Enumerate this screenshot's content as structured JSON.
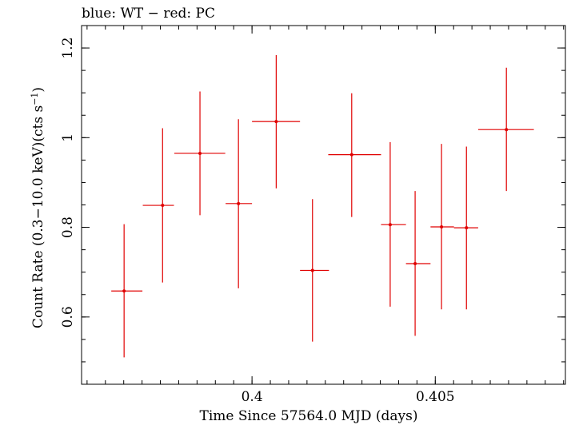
{
  "chart_data": {
    "type": "scatter",
    "title": "blue: WT − red: PC",
    "xlabel": "Time Since 57564.0 MJD (days)",
    "ylabel_main": "Count Rate (0.3−10.0 keV)(cts s",
    "ylabel_sup": "−1",
    "ylabel_close": ")",
    "xlim": [
      0.39535,
      0.40855
    ],
    "ylim": [
      0.45,
      1.25
    ],
    "x_ticks": [
      {
        "value": 0.4,
        "label": "0.4"
      },
      {
        "value": 0.405,
        "label": "0.405"
      }
    ],
    "x_minor_step": 0.0005,
    "y_ticks": [
      {
        "value": 0.6,
        "label": "0.6"
      },
      {
        "value": 0.8,
        "label": "0.8"
      },
      {
        "value": 1.0,
        "label": "1"
      },
      {
        "value": 1.2,
        "label": "1.2"
      }
    ],
    "y_minor_step": 0.05,
    "series": [
      {
        "color": "#e00000",
        "points": [
          {
            "x": 0.39651,
            "xerr": [
              0.39616,
              0.39701
            ],
            "y": 0.658,
            "yerr": [
              0.51,
              0.807
            ]
          },
          {
            "x": 0.39756,
            "xerr": [
              0.39702,
              0.39787
            ],
            "y": 0.849,
            "yerr": [
              0.677,
              1.021
            ]
          },
          {
            "x": 0.39858,
            "xerr": [
              0.39788,
              0.39927
            ],
            "y": 0.965,
            "yerr": [
              0.827,
              1.103
            ]
          },
          {
            "x": 0.39963,
            "xerr": [
              0.39928,
              0.4
            ],
            "y": 0.853,
            "yerr": [
              0.664,
              1.041
            ]
          },
          {
            "x": 0.40066,
            "xerr": [
              0.4,
              0.40131
            ],
            "y": 1.036,
            "yerr": [
              0.887,
              1.184
            ]
          },
          {
            "x": 0.40165,
            "xerr": [
              0.40131,
              0.4021
            ],
            "y": 0.704,
            "yerr": [
              0.545,
              0.863
            ]
          },
          {
            "x": 0.40272,
            "xerr": [
              0.40208,
              0.40352
            ],
            "y": 0.962,
            "yerr": [
              0.823,
              1.099
            ]
          },
          {
            "x": 0.40377,
            "xerr": [
              0.40352,
              0.4042
            ],
            "y": 0.806,
            "yerr": [
              0.623,
              0.99
            ]
          },
          {
            "x": 0.40445,
            "xerr": [
              0.4042,
              0.40487
            ],
            "y": 0.719,
            "yerr": [
              0.558,
              0.881
            ]
          },
          {
            "x": 0.40517,
            "xerr": [
              0.40487,
              0.40551
            ],
            "y": 0.801,
            "yerr": [
              0.617,
              0.986
            ]
          },
          {
            "x": 0.40585,
            "xerr": [
              0.40551,
              0.40617
            ],
            "y": 0.799,
            "yerr": [
              0.617,
              0.98
            ]
          },
          {
            "x": 0.40694,
            "xerr": [
              0.40617,
              0.40769
            ],
            "y": 1.018,
            "yerr": [
              0.881,
              1.156
            ]
          }
        ]
      }
    ]
  }
}
